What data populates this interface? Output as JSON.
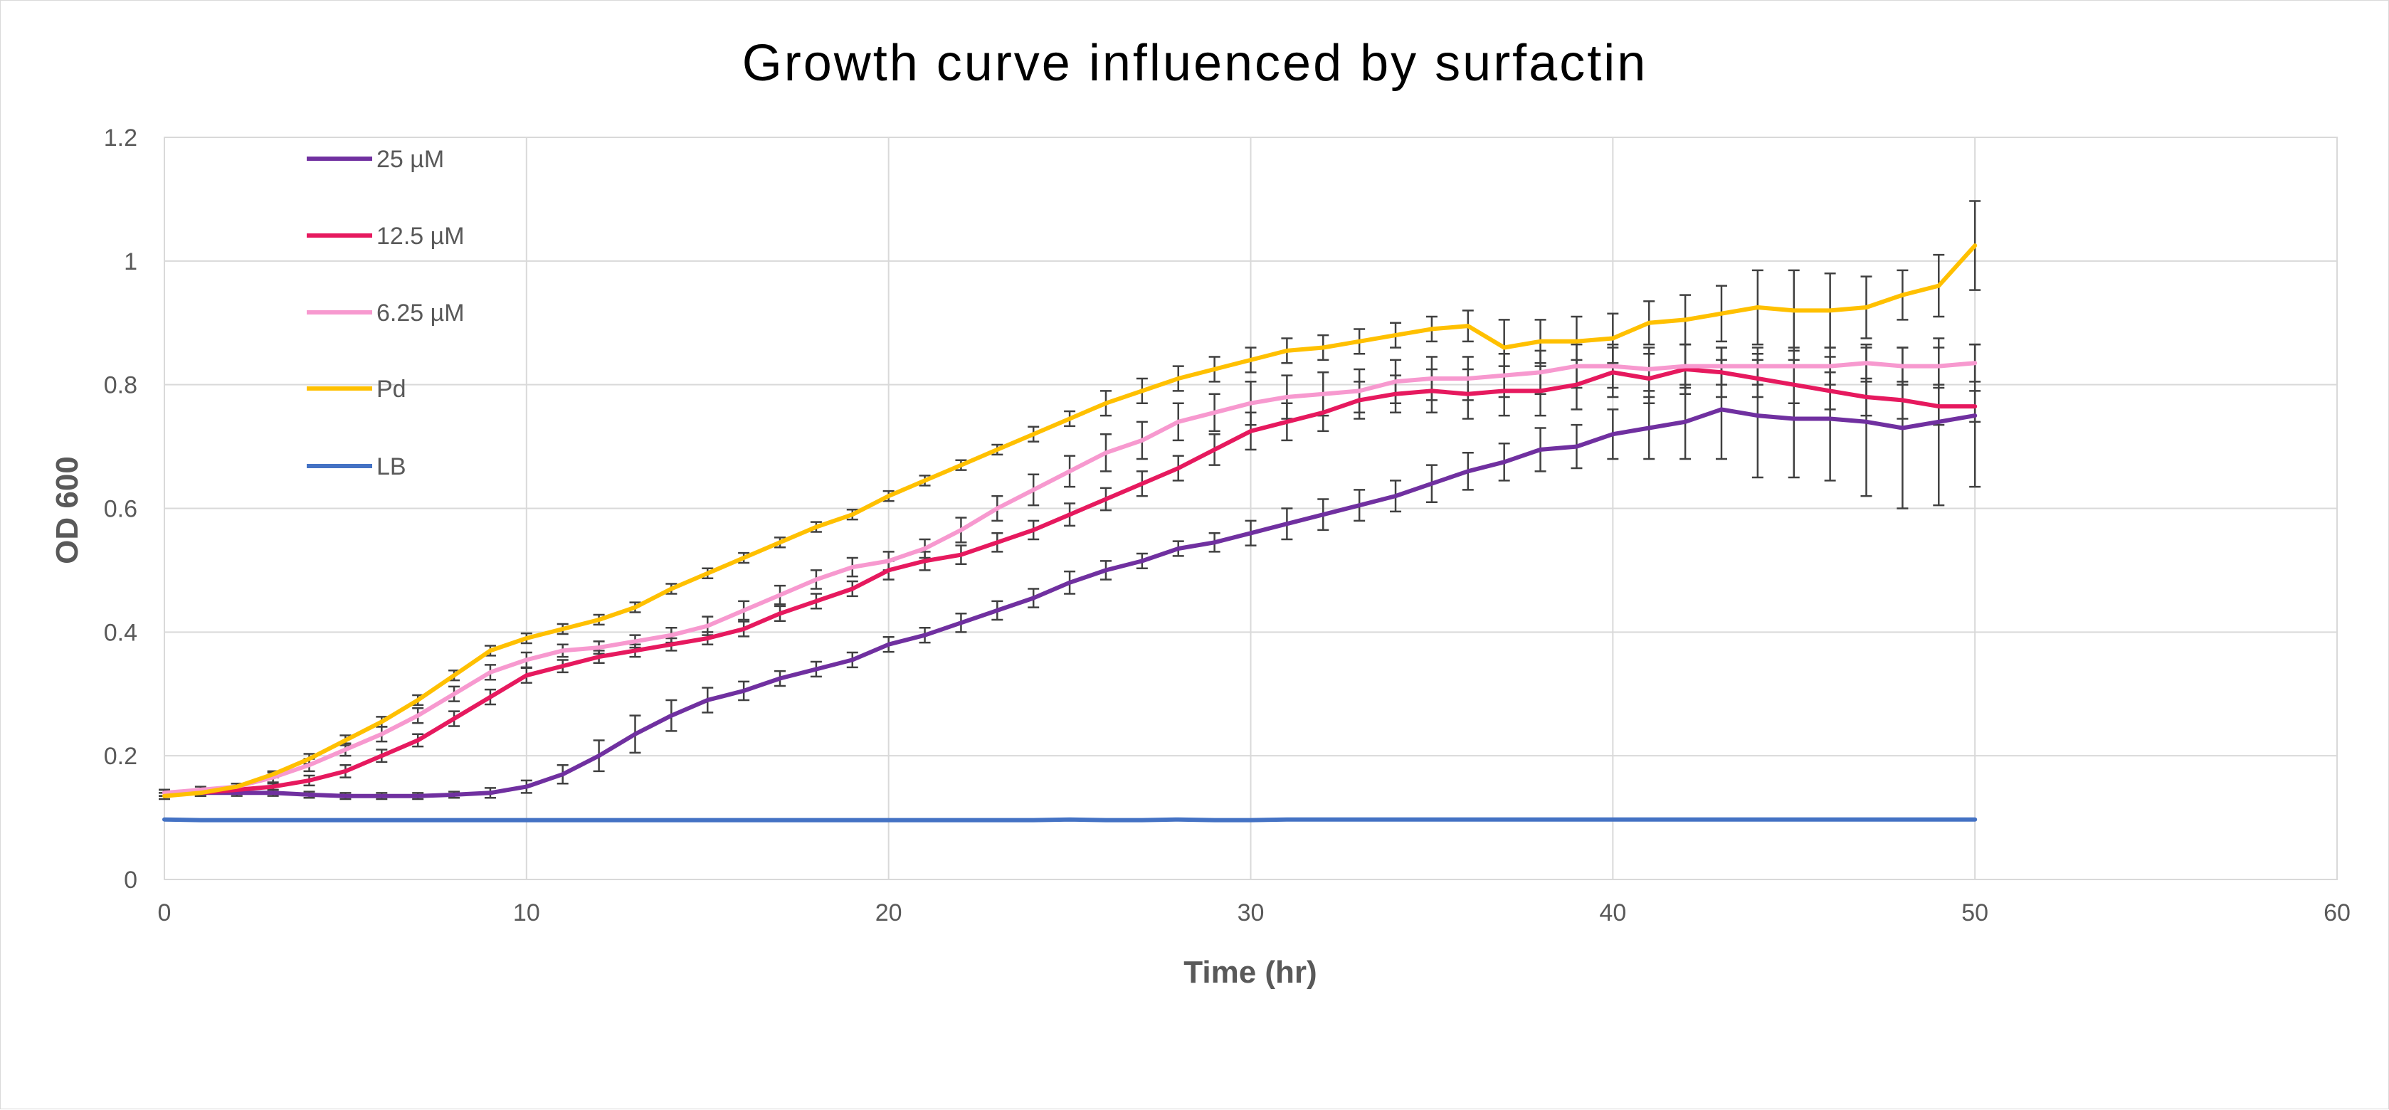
{
  "chart_data": {
    "type": "line",
    "title": "Growth curve influenced by surfactin",
    "xlabel": "Time (hr)",
    "ylabel": "OD 600",
    "xlim": [
      0,
      60
    ],
    "ylim": [
      0,
      1.2
    ],
    "x_ticks": [
      "0",
      "10",
      "20",
      "30",
      "40",
      "50",
      "60"
    ],
    "y_ticks": [
      "0",
      "0.2",
      "0.4",
      "0.6",
      "0.8",
      "1",
      "1.2"
    ],
    "grid": true,
    "legend_position": "top-left, inside plot",
    "x": [
      0,
      1,
      2,
      3,
      4,
      5,
      6,
      7,
      8,
      9,
      10,
      11,
      12,
      13,
      14,
      15,
      16,
      17,
      18,
      19,
      20,
      21,
      22,
      23,
      24,
      25,
      26,
      27,
      28,
      29,
      30,
      31,
      32,
      33,
      34,
      35,
      36,
      37,
      38,
      39,
      40,
      41,
      42,
      43,
      44,
      45,
      46,
      47,
      48,
      49,
      50
    ],
    "series": [
      {
        "name": "25 µM",
        "color": "#7030a0",
        "values": [
          0.14,
          0.14,
          0.14,
          0.14,
          0.137,
          0.135,
          0.135,
          0.135,
          0.137,
          0.14,
          0.15,
          0.17,
          0.2,
          0.235,
          0.265,
          0.29,
          0.305,
          0.325,
          0.34,
          0.355,
          0.38,
          0.395,
          0.415,
          0.435,
          0.455,
          0.48,
          0.5,
          0.515,
          0.535,
          0.545,
          0.56,
          0.575,
          0.59,
          0.605,
          0.62,
          0.64,
          0.66,
          0.675,
          0.695,
          0.7,
          0.72,
          0.73,
          0.74,
          0.76,
          0.75,
          0.745,
          0.745,
          0.74,
          0.73,
          0.74,
          0.75
        ],
        "errors": [
          0.005,
          0.005,
          0.005,
          0.005,
          0.005,
          0.005,
          0.005,
          0.005,
          0.005,
          0.008,
          0.01,
          0.015,
          0.025,
          0.03,
          0.025,
          0.02,
          0.015,
          0.012,
          0.012,
          0.012,
          0.012,
          0.012,
          0.015,
          0.015,
          0.015,
          0.018,
          0.015,
          0.012,
          0.012,
          0.015,
          0.02,
          0.025,
          0.025,
          0.025,
          0.025,
          0.03,
          0.03,
          0.03,
          0.035,
          0.035,
          0.04,
          0.05,
          0.06,
          0.08,
          0.1,
          0.095,
          0.1,
          0.12,
          0.13,
          0.135,
          0.115
        ]
      },
      {
        "name": "12.5 µM",
        "color": "#e6195e",
        "values": [
          0.14,
          0.14,
          0.145,
          0.15,
          0.16,
          0.175,
          0.2,
          0.225,
          0.26,
          0.295,
          0.33,
          0.345,
          0.36,
          0.37,
          0.38,
          0.39,
          0.405,
          0.43,
          0.45,
          0.47,
          0.5,
          0.515,
          0.525,
          0.545,
          0.565,
          0.59,
          0.615,
          0.64,
          0.665,
          0.695,
          0.725,
          0.74,
          0.755,
          0.775,
          0.785,
          0.79,
          0.785,
          0.79,
          0.79,
          0.8,
          0.82,
          0.81,
          0.825,
          0.82,
          0.81,
          0.8,
          0.79,
          0.78,
          0.775,
          0.765,
          0.765
        ],
        "errors": [
          0.005,
          0.005,
          0.005,
          0.005,
          0.008,
          0.01,
          0.01,
          0.01,
          0.012,
          0.012,
          0.012,
          0.01,
          0.01,
          0.01,
          0.01,
          0.01,
          0.012,
          0.012,
          0.012,
          0.012,
          0.015,
          0.015,
          0.015,
          0.015,
          0.015,
          0.018,
          0.018,
          0.02,
          0.02,
          0.025,
          0.03,
          0.03,
          0.03,
          0.03,
          0.03,
          0.035,
          0.04,
          0.04,
          0.04,
          0.04,
          0.04,
          0.04,
          0.04,
          0.04,
          0.03,
          0.03,
          0.03,
          0.03,
          0.03,
          0.03,
          0.025
        ]
      },
      {
        "name": "6.25 µM",
        "color": "#f799cf",
        "values": [
          0.14,
          0.145,
          0.15,
          0.165,
          0.185,
          0.21,
          0.235,
          0.265,
          0.3,
          0.335,
          0.355,
          0.37,
          0.375,
          0.385,
          0.395,
          0.41,
          0.435,
          0.46,
          0.485,
          0.505,
          0.515,
          0.535,
          0.565,
          0.6,
          0.63,
          0.66,
          0.69,
          0.71,
          0.74,
          0.755,
          0.77,
          0.78,
          0.785,
          0.79,
          0.805,
          0.81,
          0.81,
          0.815,
          0.82,
          0.83,
          0.83,
          0.825,
          0.83,
          0.83,
          0.83,
          0.83,
          0.83,
          0.835,
          0.83,
          0.83,
          0.835
        ],
        "errors": [
          0.005,
          0.005,
          0.005,
          0.008,
          0.01,
          0.01,
          0.012,
          0.012,
          0.012,
          0.012,
          0.012,
          0.01,
          0.01,
          0.01,
          0.012,
          0.015,
          0.015,
          0.015,
          0.015,
          0.015,
          0.015,
          0.015,
          0.02,
          0.02,
          0.025,
          0.025,
          0.03,
          0.03,
          0.03,
          0.03,
          0.035,
          0.035,
          0.035,
          0.035,
          0.035,
          0.035,
          0.035,
          0.035,
          0.035,
          0.035,
          0.035,
          0.035,
          0.035,
          0.03,
          0.03,
          0.03,
          0.03,
          0.03,
          0.03,
          0.03,
          0.03
        ]
      },
      {
        "name": "Pd",
        "color": "#ffc000",
        "values": [
          0.135,
          0.14,
          0.15,
          0.17,
          0.195,
          0.225,
          0.255,
          0.29,
          0.33,
          0.37,
          0.39,
          0.405,
          0.42,
          0.44,
          0.47,
          0.495,
          0.52,
          0.545,
          0.57,
          0.59,
          0.62,
          0.645,
          0.67,
          0.695,
          0.72,
          0.745,
          0.77,
          0.79,
          0.81,
          0.825,
          0.84,
          0.855,
          0.86,
          0.87,
          0.88,
          0.89,
          0.895,
          0.86,
          0.87,
          0.87,
          0.875,
          0.9,
          0.905,
          0.915,
          0.925,
          0.92,
          0.92,
          0.925,
          0.945,
          0.96,
          1.025
        ],
        "errors": [
          0.005,
          0.005,
          0.005,
          0.005,
          0.008,
          0.008,
          0.008,
          0.008,
          0.008,
          0.008,
          0.008,
          0.008,
          0.008,
          0.008,
          0.008,
          0.008,
          0.008,
          0.008,
          0.008,
          0.008,
          0.008,
          0.008,
          0.008,
          0.008,
          0.012,
          0.012,
          0.02,
          0.02,
          0.02,
          0.02,
          0.02,
          0.02,
          0.02,
          0.02,
          0.02,
          0.02,
          0.025,
          0.045,
          0.035,
          0.04,
          0.04,
          0.035,
          0.04,
          0.045,
          0.06,
          0.065,
          0.06,
          0.05,
          0.04,
          0.05,
          0.072
        ]
      },
      {
        "name": "LB",
        "color": "#4472c4",
        "values": [
          0.097,
          0.096,
          0.096,
          0.096,
          0.096,
          0.096,
          0.096,
          0.096,
          0.096,
          0.096,
          0.096,
          0.096,
          0.096,
          0.096,
          0.096,
          0.096,
          0.096,
          0.096,
          0.096,
          0.096,
          0.096,
          0.096,
          0.096,
          0.096,
          0.096,
          0.097,
          0.096,
          0.096,
          0.097,
          0.096,
          0.096,
          0.097,
          0.097,
          0.097,
          0.097,
          0.097,
          0.097,
          0.097,
          0.097,
          0.097,
          0.097,
          0.097,
          0.097,
          0.097,
          0.097,
          0.097,
          0.097,
          0.097,
          0.097,
          0.097,
          0.097
        ],
        "errors": []
      }
    ]
  }
}
